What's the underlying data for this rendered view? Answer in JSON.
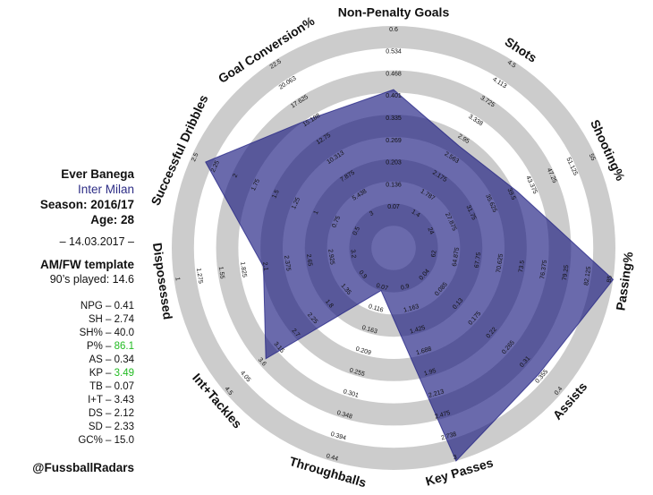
{
  "player": {
    "name": "Ever Banega",
    "team": "Inter Milan",
    "season": "Season: 2016/17",
    "age": "Age: 28",
    "date": "– 14.03.2017 –",
    "template": "AM/FW template",
    "played": "90’s played: 14.6",
    "handle": "@FussballRadars"
  },
  "stats": [
    {
      "label": "NPG – ",
      "value": "0.41",
      "highlight": false
    },
    {
      "label": "SH – ",
      "value": "2.74",
      "highlight": false
    },
    {
      "label": "SH% – ",
      "value": "40.0",
      "highlight": false
    },
    {
      "label": "P% – ",
      "value": "86.1",
      "highlight": true
    },
    {
      "label": "AS – ",
      "value": "0.34",
      "highlight": false
    },
    {
      "label": "KP – ",
      "value": "3.49",
      "highlight": true
    },
    {
      "label": "TB – ",
      "value": "0.07",
      "highlight": false
    },
    {
      "label": "I+T – ",
      "value": "3.43",
      "highlight": false
    },
    {
      "label": "DS – ",
      "value": "2.12",
      "highlight": false
    },
    {
      "label": "SD – ",
      "value": "2.33",
      "highlight": false
    },
    {
      "label": "GC% – ",
      "value": "15.0",
      "highlight": false
    }
  ],
  "colors": {
    "highlight": "#22bb22",
    "team": "#2e2e86",
    "polygon": "#1a1a80",
    "band": "#cccccc"
  },
  "chart_data": {
    "type": "radar",
    "grid": true,
    "axes": [
      {
        "name": "Non-Penalty Goals",
        "ticks": [
          "0.07",
          "0.136",
          "0.203",
          "0.269",
          "0.335",
          "0.401",
          "0.468",
          "0.534",
          "0.6"
        ],
        "value": 0.41
      },
      {
        "name": "Shots",
        "ticks": [
          "1.4",
          "1.787",
          "2.175",
          "2.563",
          "2.95",
          "3.338",
          "3.725",
          "4.113",
          "4.5"
        ],
        "value": 2.74
      },
      {
        "name": "Shooting%",
        "ticks": [
          "24",
          "27.875",
          "31.75",
          "35.625",
          "39.5",
          "43.375",
          "47.25",
          "51.125",
          "55"
        ],
        "value": 40.0
      },
      {
        "name": "Passing%",
        "ticks": [
          "62",
          "64.875",
          "67.75",
          "70.625",
          "73.5",
          "76.375",
          "79.25",
          "82.125",
          "85"
        ],
        "value": 86.1
      },
      {
        "name": "Assists",
        "ticks": [
          "0.04",
          "0.085",
          "0.13",
          "0.175",
          "0.22",
          "0.265",
          "0.31",
          "0.355",
          "0.4"
        ],
        "value": 0.34
      },
      {
        "name": "Key Passes",
        "ticks": [
          "0.9",
          "1.163",
          "1.425",
          "1.688",
          "1.95",
          "2.213",
          "2.475",
          "2.738",
          "3"
        ],
        "value": 3.49
      },
      {
        "name": "Throughballs",
        "ticks": [
          "0.07",
          "0.116",
          "0.163",
          "0.209",
          "0.255",
          "0.301",
          "0.348",
          "0.394",
          "0.44"
        ],
        "value": 0.07
      },
      {
        "name": "Int+Tackles",
        "ticks": [
          "0.9",
          "1.35",
          "1.8",
          "2.25",
          "2.7",
          "3.15",
          "3.6",
          "4.05",
          "4.5"
        ],
        "value": 3.43
      },
      {
        "name": "Disposessed",
        "ticks": [
          "3.2",
          "2.925",
          "2.65",
          "2.375",
          "2.1",
          "1.825",
          "1.55",
          "1.275",
          "1"
        ],
        "value": 2.12
      },
      {
        "name": "Successful Dribbles",
        "ticks": [
          "0.5",
          "0.75",
          "1",
          "1.25",
          "1.5",
          "1.75",
          "2",
          "2.25",
          "2.5"
        ],
        "value": 2.33
      },
      {
        "name": "Goal Conversion%",
        "ticks": [
          "3",
          "5.438",
          "7.875",
          "10.313",
          "12.75",
          "15.188",
          "17.625",
          "20.063",
          "22.5"
        ],
        "value": 15.0
      }
    ]
  }
}
